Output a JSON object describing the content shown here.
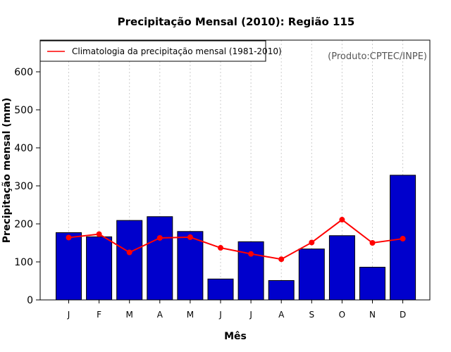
{
  "chart_data": {
    "type": "bar",
    "title": "Precipitação Mensal (2010): Região 115",
    "xlabel": "Mês",
    "ylabel": "Precipitação mensal (mm)",
    "categories": [
      "J",
      "F",
      "M",
      "A",
      "M",
      "J",
      "J",
      "A",
      "S",
      "O",
      "N",
      "D"
    ],
    "ylim": [
      0,
      680
    ],
    "yticks": [
      0,
      100,
      200,
      300,
      400,
      500,
      600
    ],
    "grid": "vertical dotted",
    "series": [
      {
        "name": "Precipitação mensal 2010",
        "kind": "bar",
        "color": "#0000cc",
        "values": [
          177,
          166,
          209,
          219,
          180,
          55,
          153,
          51,
          134,
          169,
          86,
          328
        ]
      },
      {
        "name": "Climatologia da precipitação mensal (1981-2010)",
        "kind": "line",
        "color": "#ff0000",
        "values": [
          164,
          173,
          125,
          163,
          165,
          137,
          121,
          107,
          151,
          211,
          150,
          161
        ]
      }
    ],
    "legend": {
      "position": "top-left",
      "entries": [
        "Climatologia da precipitação mensal (1981-2010)"
      ]
    },
    "annotation": "(Produto:CPTEC/INPE)"
  }
}
